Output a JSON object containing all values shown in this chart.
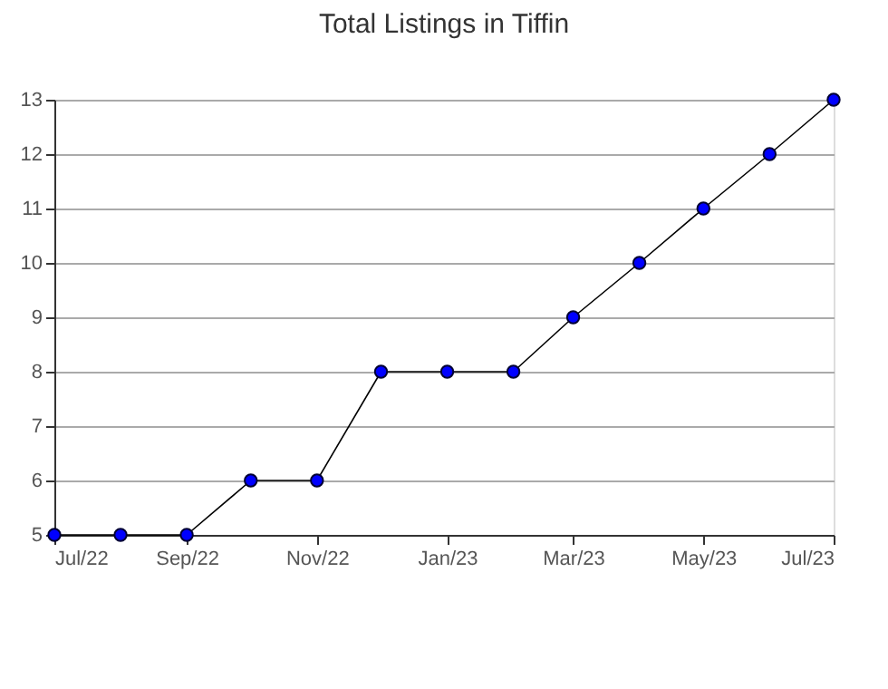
{
  "chart_data": {
    "type": "line",
    "title": "Total Listings in Tiffin",
    "x": [
      "2022-07",
      "2022-08",
      "2022-09",
      "2022-10",
      "2022-11",
      "2022-12",
      "2023-01",
      "2023-02",
      "2023-03",
      "2023-04",
      "2023-05",
      "2023-06",
      "2023-07"
    ],
    "series": [
      {
        "color": "#0000ff",
        "values": [
          5,
          5,
          5,
          6,
          6,
          8,
          8,
          8,
          9,
          10,
          11,
          12,
          13
        ]
      }
    ],
    "xlim": [
      "2022-07",
      "2023-07"
    ],
    "xticks": [
      {
        "value": "2022-07",
        "label": "Jul/22"
      },
      {
        "value": "2022-09",
        "label": "Sep/22"
      },
      {
        "value": "2022-11",
        "label": "Nov/22"
      },
      {
        "value": "2023-01",
        "label": "Jan/23"
      },
      {
        "value": "2023-03",
        "label": "Mar/23"
      },
      {
        "value": "2023-05",
        "label": "May/23"
      },
      {
        "value": "2023-07",
        "label": "Jul/23"
      }
    ],
    "ylim": [
      5,
      13
    ],
    "yticks": [
      5,
      6,
      7,
      8,
      9,
      10,
      11,
      12,
      13
    ],
    "grid": "y",
    "marker": "circle",
    "line_style": "solid"
  }
}
